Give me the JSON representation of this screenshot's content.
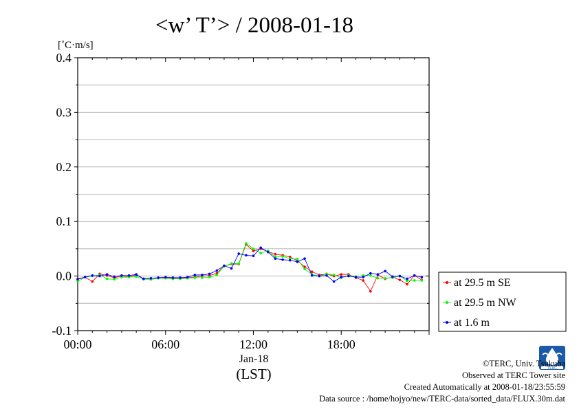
{
  "chart_data": {
    "type": "line",
    "title": "<w’ T’> / 2008-01-18",
    "ylabel": "[˚C·m/s]",
    "xlabel": "(LST)",
    "xlabel_date": "Jan-18",
    "xlim": [
      0,
      24
    ],
    "ylim": [
      -0.1,
      0.4
    ],
    "x_ticks": [
      {
        "value": 0,
        "label": "00:00"
      },
      {
        "value": 6,
        "label": "06:00"
      },
      {
        "value": 12,
        "label": "12:00"
      },
      {
        "value": 18,
        "label": "18:00"
      }
    ],
    "y_ticks": [
      {
        "value": -0.1,
        "label": "-0.1"
      },
      {
        "value": 0.0,
        "label": "0.0"
      },
      {
        "value": 0.1,
        "label": "0.1"
      },
      {
        "value": 0.2,
        "label": "0.2"
      },
      {
        "value": 0.3,
        "label": "0.3"
      },
      {
        "value": 0.4,
        "label": "0.4"
      }
    ],
    "grid": true,
    "legend_position": "right",
    "x": [
      0,
      0.5,
      1,
      1.5,
      2,
      2.5,
      3,
      3.5,
      4,
      4.5,
      5,
      5.5,
      6,
      6.5,
      7,
      7.5,
      8,
      8.5,
      9,
      9.5,
      10,
      10.5,
      11,
      11.5,
      12,
      12.5,
      13,
      13.5,
      14,
      14.5,
      15,
      15.5,
      16,
      16.5,
      17,
      17.5,
      18,
      18.5,
      19,
      19.5,
      20,
      20.5,
      21,
      21.5,
      22,
      22.5,
      23,
      23.5
    ],
    "series": [
      {
        "name": "at 29.5 m SE",
        "color": "#ff0000",
        "values": [
          -0.005,
          -0.002,
          -0.01,
          0.004,
          0.001,
          -0.003,
          0.0,
          -0.001,
          0.002,
          -0.005,
          -0.006,
          -0.004,
          -0.003,
          -0.004,
          -0.004,
          -0.003,
          -0.002,
          0.0,
          0.001,
          0.005,
          0.018,
          0.022,
          0.022,
          0.058,
          0.046,
          0.05,
          0.045,
          0.04,
          0.038,
          0.035,
          0.028,
          0.017,
          0.008,
          0.002,
          0.004,
          0.0,
          0.003,
          0.003,
          -0.003,
          -0.008,
          -0.028,
          0.002,
          -0.005,
          -0.002,
          -0.007,
          -0.015,
          0.001,
          -0.007
        ]
      },
      {
        "name": "at 29.5 m NW",
        "color": "#00ff00",
        "values": [
          -0.01,
          -0.002,
          0.0,
          0.002,
          -0.005,
          -0.006,
          -0.002,
          -0.002,
          -0.001,
          -0.006,
          -0.006,
          -0.004,
          -0.004,
          -0.005,
          -0.005,
          -0.004,
          -0.003,
          -0.003,
          -0.002,
          0.002,
          0.018,
          0.023,
          0.023,
          0.06,
          0.05,
          0.042,
          0.046,
          0.035,
          0.036,
          0.032,
          0.031,
          0.013,
          0.003,
          0.0,
          0.004,
          0.002,
          -0.003,
          0.001,
          -0.001,
          0.001,
          0.001,
          -0.004,
          -0.004,
          -0.003,
          0.0,
          -0.009,
          -0.008,
          -0.008
        ]
      },
      {
        "name": "at 1.6 m",
        "color": "#0000ff",
        "values": [
          -0.006,
          -0.002,
          0.001,
          0.0,
          0.003,
          -0.001,
          0.001,
          0.001,
          0.003,
          -0.005,
          -0.004,
          -0.003,
          -0.002,
          -0.003,
          -0.003,
          -0.002,
          0.002,
          0.002,
          0.004,
          0.01,
          0.019,
          0.014,
          0.041,
          0.038,
          0.037,
          0.052,
          0.044,
          0.032,
          0.03,
          0.029,
          0.026,
          0.032,
          0.001,
          0.0,
          0.001,
          -0.01,
          -0.002,
          0.0,
          -0.002,
          -0.002,
          0.005,
          0.003,
          0.009,
          -0.001,
          0.0,
          -0.005,
          0.001,
          -0.002
        ]
      }
    ]
  },
  "footer": {
    "copyright": "©TERC, Univ. Tsukuba",
    "observed": "Observed at TERC Tower site",
    "created": "Created Automatically at 2008-01-18/23:55:59",
    "source": "Data source : /home/hojyo/new/TERC-data/sorted_data/FLUX.30m.dat"
  }
}
